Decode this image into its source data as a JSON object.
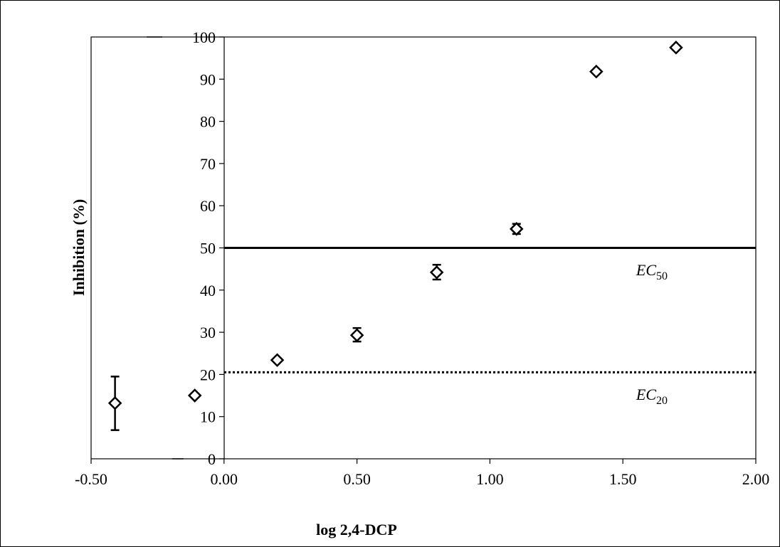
{
  "chart_data": {
    "type": "scatter",
    "title": "",
    "xlabel": "log 2,4-DCP",
    "ylabel": "Inhibition (%)",
    "xlim": [
      -0.5,
      2.0
    ],
    "ylim": [
      0,
      100
    ],
    "x_ticks": [
      "-0.50",
      "0.00",
      "0.50",
      "1.00",
      "1.50",
      "2.00"
    ],
    "y_ticks": [
      "0",
      "10",
      "20",
      "30",
      "40",
      "50",
      "60",
      "70",
      "80",
      "90",
      "100"
    ],
    "grid": false,
    "legend": "none",
    "marker": "open-diamond",
    "series": [
      {
        "points": [
          {
            "x": -0.41,
            "y": 13.2,
            "err_low": 6.8,
            "err_high": 19.5
          },
          {
            "x": -0.11,
            "y": 15.0
          },
          {
            "x": 0.2,
            "y": 23.4
          },
          {
            "x": 0.5,
            "y": 29.3,
            "err_low": 27.8,
            "err_high": 31.0
          },
          {
            "x": 0.8,
            "y": 44.2,
            "err_low": 42.5,
            "err_high": 46.0
          },
          {
            "x": 1.1,
            "y": 54.5,
            "err_low": 53.3,
            "err_high": 55.7
          },
          {
            "x": 1.4,
            "y": 91.8
          },
          {
            "x": 1.7,
            "y": 97.5
          }
        ]
      }
    ],
    "reference_lines": [
      {
        "y": 50,
        "style": "solid",
        "label_main": "EC",
        "label_sub": "50",
        "label_x": 1.55,
        "label_y": 43.5
      },
      {
        "y": 20.5,
        "style": "dotted",
        "label_main": "EC",
        "label_sub": "20",
        "label_x": 1.55,
        "label_y": 14.0
      }
    ]
  }
}
